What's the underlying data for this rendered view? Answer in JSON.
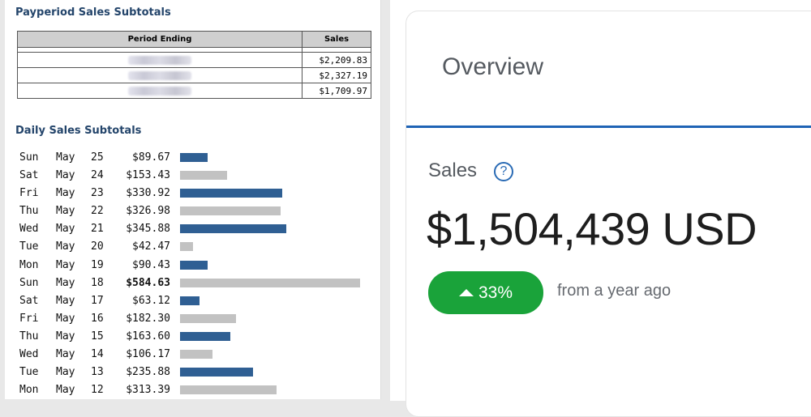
{
  "payperiod": {
    "title": "Payperiod Sales Subtotals",
    "headers": {
      "period": "Period Ending",
      "sales": "Sales"
    },
    "rows": [
      {
        "amount": "$2,209.83"
      },
      {
        "amount": "$2,327.19"
      },
      {
        "amount": "$1,709.97"
      }
    ]
  },
  "daily": {
    "title": "Daily Sales Subtotals",
    "bar_colors": {
      "blue": "#2f5f93",
      "gray": "#c2c2c2"
    },
    "rows": [
      {
        "day": "Sun",
        "month": "May",
        "date": "25",
        "amount": "$89.67",
        "value": 89.67,
        "color": "blue",
        "bold": false
      },
      {
        "day": "Sat",
        "month": "May",
        "date": "24",
        "amount": "$153.43",
        "value": 153.43,
        "color": "gray",
        "bold": false
      },
      {
        "day": "Fri",
        "month": "May",
        "date": "23",
        "amount": "$330.92",
        "value": 330.92,
        "color": "blue",
        "bold": false
      },
      {
        "day": "Thu",
        "month": "May",
        "date": "22",
        "amount": "$326.98",
        "value": 326.98,
        "color": "gray",
        "bold": false
      },
      {
        "day": "Wed",
        "month": "May",
        "date": "21",
        "amount": "$345.88",
        "value": 345.88,
        "color": "blue",
        "bold": false
      },
      {
        "day": "Tue",
        "month": "May",
        "date": "20",
        "amount": "$42.47",
        "value": 42.47,
        "color": "gray",
        "bold": false
      },
      {
        "day": "Mon",
        "month": "May",
        "date": "19",
        "amount": "$90.43",
        "value": 90.43,
        "color": "blue",
        "bold": false
      },
      {
        "day": "Sun",
        "month": "May",
        "date": "18",
        "amount": "$584.63",
        "value": 584.63,
        "color": "gray",
        "bold": true
      },
      {
        "day": "Sat",
        "month": "May",
        "date": "17",
        "amount": "$63.12",
        "value": 63.12,
        "color": "blue",
        "bold": false
      },
      {
        "day": "Fri",
        "month": "May",
        "date": "16",
        "amount": "$182.30",
        "value": 182.3,
        "color": "gray",
        "bold": false
      },
      {
        "day": "Thu",
        "month": "May",
        "date": "15",
        "amount": "$163.60",
        "value": 163.6,
        "color": "blue",
        "bold": false
      },
      {
        "day": "Wed",
        "month": "May",
        "date": "14",
        "amount": "$106.17",
        "value": 106.17,
        "color": "gray",
        "bold": false
      },
      {
        "day": "Tue",
        "month": "May",
        "date": "13",
        "amount": "$235.88",
        "value": 235.88,
        "color": "blue",
        "bold": false
      },
      {
        "day": "Mon",
        "month": "May",
        "date": "12",
        "amount": "$313.39",
        "value": 313.39,
        "color": "gray",
        "bold": false
      }
    ]
  },
  "overview": {
    "title": "Overview",
    "accent_color": "#1f63b5",
    "sales_label": "Sales",
    "help_icon": "?",
    "value": "$1,504,439 USD",
    "change": {
      "percent": "33%",
      "direction": "up",
      "color": "#1aa33a"
    },
    "comparison": "from a year ago"
  }
}
